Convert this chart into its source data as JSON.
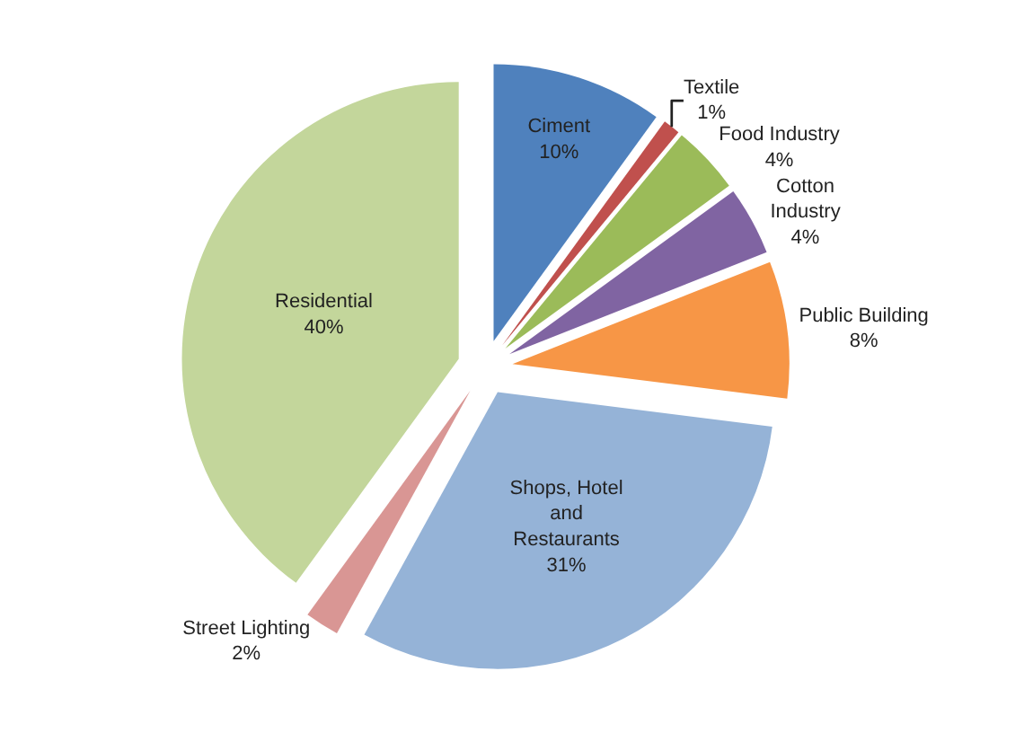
{
  "chart_data": {
    "type": "pie",
    "categories": [
      "Ciment",
      "Textile",
      "Food Industry",
      "Cotton\nIndustry",
      "Public Building",
      "Shops, Hotel\nand\nRestaurants",
      "Street Lighting",
      "Residential"
    ],
    "values": [
      10,
      1,
      4,
      4,
      8,
      31,
      2,
      40
    ],
    "value_labels": [
      "10%",
      "1%",
      "4%",
      "4%",
      "8%",
      "31%",
      "2%",
      "40%"
    ],
    "colors": [
      "#4f81bd",
      "#c0504d",
      "#9bbb59",
      "#8064a2",
      "#f79646",
      "#95b3d7",
      "#d99694",
      "#c3d69b"
    ],
    "legend": false
  }
}
